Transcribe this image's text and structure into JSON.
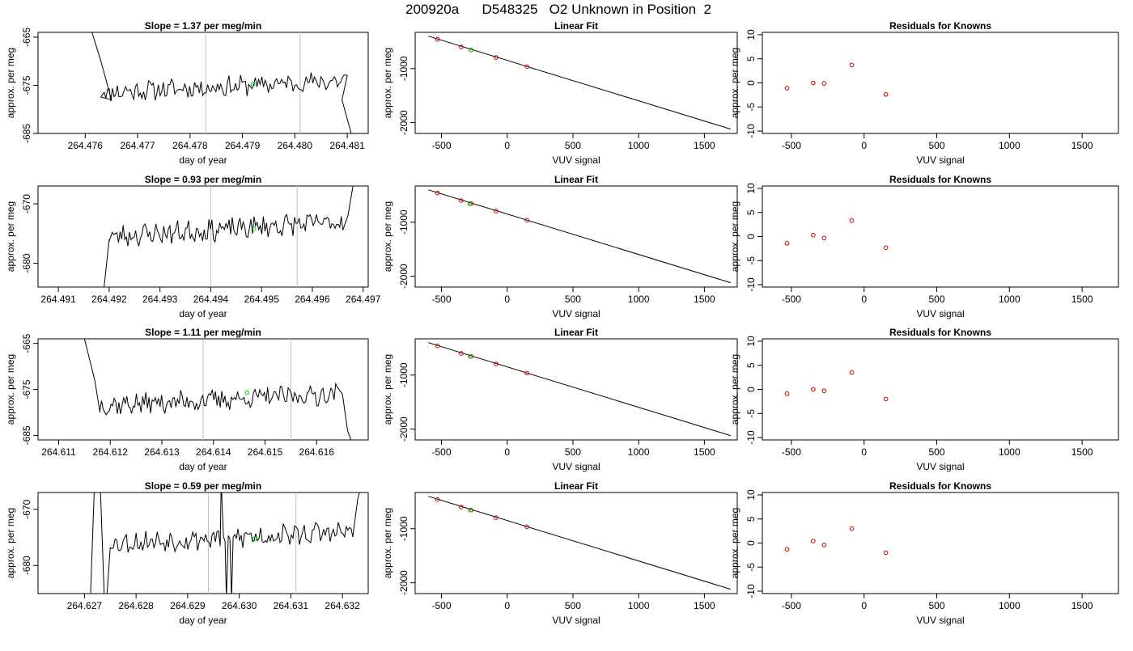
{
  "figure_title": "200920a      D548325   O2 Unknown in Position  2",
  "colors": {
    "trace": "#000000",
    "vline": "#bebebe",
    "known_point": "#cc0000",
    "unknown_point": "#00cc00",
    "fit_line": "#000000"
  },
  "chart_data": [
    {
      "type": "line",
      "row": 0,
      "col": 0,
      "title": "Slope =  1.37  per meg/min",
      "xlabel": "day of year",
      "ylabel": "approx. per meg",
      "xlim": [
        264.4751,
        264.4814
      ],
      "ylim": [
        -685,
        -664
      ],
      "xticks": [
        264.476,
        264.477,
        264.478,
        264.479,
        264.48,
        264.481
      ],
      "xtick_labels": [
        "264.476",
        "264.477",
        "264.478",
        "264.479",
        "264.480",
        "264.481"
      ],
      "yticks": [
        -685,
        -675,
        -665
      ],
      "ytick_labels": [
        "-685",
        "-675",
        "-665"
      ],
      "vlines": [
        264.4783,
        264.4801
      ],
      "trace": {
        "x_start": 264.4763,
        "x_end": 264.481,
        "base": -676.5,
        "trend": 2.5,
        "noise": 1.8,
        "seed": 11,
        "lead": [
          [
            264.4761,
            -663
          ],
          [
            264.4763,
            -670
          ],
          [
            264.4765,
            -678
          ]
        ],
        "tail": [
          [
            264.4809,
            -678
          ],
          [
            264.481,
            -682
          ],
          [
            264.4811,
            -686
          ]
        ]
      },
      "unknown_point": {
        "x": 264.4792,
        "y": -674.8
      }
    },
    {
      "type": "scatter",
      "row": 0,
      "col": 1,
      "title": "Linear Fit",
      "xlabel": "VUV signal",
      "ylabel": "approx. per meg",
      "xlim": [
        -700,
        1750
      ],
      "ylim": [
        -2200,
        -330
      ],
      "xticks": [
        -500,
        0,
        500,
        1000,
        1500
      ],
      "xtick_labels": [
        "-500",
        "0",
        "500",
        "1000",
        "1500"
      ],
      "yticks": [
        -2000,
        -1000
      ],
      "ytick_labels": [
        "-2000",
        "-1000"
      ],
      "fit_line": [
        [
          -600,
          -400
        ],
        [
          1700,
          -2120
        ]
      ],
      "known_points": [
        {
          "x": -530,
          "y": -460
        },
        {
          "x": -350,
          "y": -600
        },
        {
          "x": -275,
          "y": -655
        },
        {
          "x": -85,
          "y": -795
        },
        {
          "x": 150,
          "y": -965
        }
      ],
      "unknown_point": {
        "x": -275,
        "y": -655
      }
    },
    {
      "type": "scatter",
      "row": 0,
      "col": 2,
      "title": "Residuals for Knowns",
      "xlabel": "VUV signal",
      "ylabel": "approx. per meg",
      "xlim": [
        -700,
        1750
      ],
      "ylim": [
        -10.5,
        10.5
      ],
      "xticks": [
        -500,
        0,
        500,
        1000,
        1500
      ],
      "xtick_labels": [
        "-500",
        "0",
        "500",
        "1000",
        "1500"
      ],
      "yticks": [
        -10,
        -5,
        0,
        5,
        10
      ],
      "ytick_labels": [
        "-10",
        "-5",
        "0",
        "5",
        "10"
      ],
      "known_points": [
        {
          "x": -530,
          "y": -1.1
        },
        {
          "x": -350,
          "y": 0.0
        },
        {
          "x": -275,
          "y": -0.1
        },
        {
          "x": -85,
          "y": 3.7
        },
        {
          "x": 150,
          "y": -2.4
        }
      ]
    },
    {
      "type": "line",
      "row": 1,
      "col": 0,
      "title": "Slope =  0.93  per meg/min",
      "xlabel": "day of year",
      "ylabel": "approx. per meg",
      "xlim": [
        264.4906,
        264.4971
      ],
      "ylim": [
        -684,
        -667
      ],
      "xticks": [
        264.491,
        264.492,
        264.493,
        264.494,
        264.495,
        264.496,
        264.497
      ],
      "xtick_labels": [
        "264.491",
        "264.492",
        "264.493",
        "264.494",
        "264.495",
        "264.496",
        "264.497"
      ],
      "yticks": [
        -680,
        -670
      ],
      "ytick_labels": [
        "-680",
        "-670"
      ],
      "vlines": [
        264.494,
        264.4957
      ],
      "trace": {
        "x_start": 264.492,
        "x_end": 264.4966,
        "base": -675.5,
        "trend": 2.5,
        "noise": 1.6,
        "seed": 23,
        "lead": [
          [
            264.4919,
            -684
          ],
          [
            264.492,
            -676
          ]
        ],
        "tail": [
          [
            264.4967,
            -672
          ],
          [
            264.4968,
            -667
          ],
          [
            264.4969,
            -665
          ]
        ]
      },
      "unknown_point": {
        "x": 264.49485,
        "y": -674.2
      }
    },
    {
      "type": "scatter",
      "row": 1,
      "col": 1,
      "title": "Linear Fit",
      "xlabel": "VUV signal",
      "ylabel": "approx. per meg",
      "xlim": [
        -700,
        1750
      ],
      "ylim": [
        -2200,
        -330
      ],
      "xticks": [
        -500,
        0,
        500,
        1000,
        1500
      ],
      "xtick_labels": [
        "-500",
        "0",
        "500",
        "1000",
        "1500"
      ],
      "yticks": [
        -2000,
        -1000
      ],
      "ytick_labels": [
        "-2000",
        "-1000"
      ],
      "fit_line": [
        [
          -600,
          -400
        ],
        [
          1700,
          -2120
        ]
      ],
      "known_points": [
        {
          "x": -530,
          "y": -460
        },
        {
          "x": -350,
          "y": -600
        },
        {
          "x": -275,
          "y": -655
        },
        {
          "x": -85,
          "y": -795
        },
        {
          "x": 150,
          "y": -965
        }
      ],
      "unknown_point": {
        "x": -285,
        "y": -655
      }
    },
    {
      "type": "scatter",
      "row": 1,
      "col": 2,
      "title": "Residuals for Knowns",
      "xlabel": "VUV signal",
      "ylabel": "approx. per meg",
      "xlim": [
        -700,
        1750
      ],
      "ylim": [
        -10.5,
        10.5
      ],
      "xticks": [
        -500,
        0,
        500,
        1000,
        1500
      ],
      "xtick_labels": [
        "-500",
        "0",
        "500",
        "1000",
        "1500"
      ],
      "yticks": [
        -10,
        -5,
        0,
        5,
        10
      ],
      "ytick_labels": [
        "-10",
        "-5",
        "0",
        "5",
        "10"
      ],
      "known_points": [
        {
          "x": -530,
          "y": -1.4
        },
        {
          "x": -350,
          "y": 0.3
        },
        {
          "x": -275,
          "y": -0.3
        },
        {
          "x": -85,
          "y": 3.3
        },
        {
          "x": 150,
          "y": -2.3
        }
      ]
    },
    {
      "type": "line",
      "row": 2,
      "col": 0,
      "title": "Slope =  1.11  per meg/min",
      "xlabel": "day of year",
      "ylabel": "approx. per meg",
      "xlim": [
        264.6106,
        264.617
      ],
      "ylim": [
        -686,
        -664
      ],
      "xticks": [
        264.611,
        264.612,
        264.613,
        264.614,
        264.615,
        264.616
      ],
      "xtick_labels": [
        "264.611",
        "264.612",
        "264.613",
        "264.614",
        "264.615",
        "264.616"
      ],
      "yticks": [
        -685,
        -675,
        -665
      ],
      "ytick_labels": [
        "-685",
        "-675",
        "-665"
      ],
      "vlines": [
        264.6138,
        264.6155
      ],
      "trace": {
        "x_start": 264.6118,
        "x_end": 264.6164,
        "base": -678.5,
        "trend": 2.5,
        "noise": 2.0,
        "seed": 37,
        "lead": [
          [
            264.6115,
            -664
          ],
          [
            264.6117,
            -673
          ],
          [
            264.6118,
            -680
          ]
        ],
        "tail": [
          [
            264.6165,
            -676
          ],
          [
            264.6166,
            -684
          ],
          [
            264.6167,
            -687
          ]
        ]
      },
      "unknown_point": {
        "x": 264.61465,
        "y": -675.7
      }
    },
    {
      "type": "scatter",
      "row": 2,
      "col": 1,
      "title": "Linear Fit",
      "xlabel": "VUV signal",
      "ylabel": "approx. per meg",
      "xlim": [
        -700,
        1750
      ],
      "ylim": [
        -2200,
        -330
      ],
      "xticks": [
        -500,
        0,
        500,
        1000,
        1500
      ],
      "xtick_labels": [
        "-500",
        "0",
        "500",
        "1000",
        "1500"
      ],
      "yticks": [
        -2000,
        -1000
      ],
      "ytick_labels": [
        "-2000",
        "-1000"
      ],
      "fit_line": [
        [
          -600,
          -400
        ],
        [
          1700,
          -2120
        ]
      ],
      "known_points": [
        {
          "x": -530,
          "y": -460
        },
        {
          "x": -350,
          "y": -600
        },
        {
          "x": -275,
          "y": -655
        },
        {
          "x": -85,
          "y": -795
        },
        {
          "x": 150,
          "y": -965
        }
      ],
      "unknown_point": {
        "x": -280,
        "y": -655
      }
    },
    {
      "type": "scatter",
      "row": 2,
      "col": 2,
      "title": "Residuals for Knowns",
      "xlabel": "VUV signal",
      "ylabel": "approx. per meg",
      "xlim": [
        -700,
        1750
      ],
      "ylim": [
        -10.5,
        10.5
      ],
      "xticks": [
        -500,
        0,
        500,
        1000,
        1500
      ],
      "xtick_labels": [
        "-500",
        "0",
        "500",
        "1000",
        "1500"
      ],
      "yticks": [
        -10,
        -5,
        0,
        5,
        10
      ],
      "ytick_labels": [
        "-10",
        "-5",
        "0",
        "5",
        "10"
      ],
      "known_points": [
        {
          "x": -530,
          "y": -0.9
        },
        {
          "x": -350,
          "y": 0.0
        },
        {
          "x": -275,
          "y": -0.3
        },
        {
          "x": -85,
          "y": 3.5
        },
        {
          "x": 150,
          "y": -2.0
        }
      ]
    },
    {
      "type": "line",
      "row": 3,
      "col": 0,
      "title": "Slope =  0.59  per meg/min",
      "xlabel": "day of year",
      "ylabel": "approx. per meg",
      "xlim": [
        264.6261,
        264.6325
      ],
      "ylim": [
        -685,
        -667
      ],
      "xticks": [
        264.627,
        264.628,
        264.629,
        264.63,
        264.631,
        264.632
      ],
      "xtick_labels": [
        "264.627",
        "264.628",
        "264.629",
        "264.630",
        "264.631",
        "264.632"
      ],
      "yticks": [
        -680,
        -670
      ],
      "ytick_labels": [
        "-680",
        "-670"
      ],
      "vlines": [
        264.6294,
        264.6311
      ],
      "trace": {
        "x_start": 264.6275,
        "x_end": 264.6322,
        "base": -676.0,
        "trend": 2.0,
        "noise": 1.7,
        "seed": 53,
        "lead": [
          [
            264.6271,
            -690
          ],
          [
            264.6272,
            -664
          ],
          [
            264.6273,
            -664
          ],
          [
            264.6274,
            -690
          ]
        ],
        "tail": [
          [
            264.6323,
            -668
          ],
          [
            264.6324,
            -665
          ]
        ],
        "spikes": [
          [
            264.62965,
            -665
          ],
          [
            264.62975,
            -686
          ],
          [
            264.62985,
            -686
          ]
        ]
      },
      "unknown_point": {
        "x": 264.6303,
        "y": -675.2
      }
    },
    {
      "type": "scatter",
      "row": 3,
      "col": 1,
      "title": "Linear Fit",
      "xlabel": "VUV signal",
      "ylabel": "approx. per meg",
      "xlim": [
        -700,
        1750
      ],
      "ylim": [
        -2200,
        -330
      ],
      "xticks": [
        -500,
        0,
        500,
        1000,
        1500
      ],
      "xtick_labels": [
        "-500",
        "0",
        "500",
        "1000",
        "1500"
      ],
      "yticks": [
        -2000,
        -1000
      ],
      "ytick_labels": [
        "-2000",
        "-1000"
      ],
      "fit_line": [
        [
          -600,
          -400
        ],
        [
          1700,
          -2120
        ]
      ],
      "known_points": [
        {
          "x": -530,
          "y": -460
        },
        {
          "x": -350,
          "y": -600
        },
        {
          "x": -275,
          "y": -655
        },
        {
          "x": -85,
          "y": -795
        },
        {
          "x": 150,
          "y": -965
        }
      ],
      "unknown_point": {
        "x": -280,
        "y": -655
      }
    },
    {
      "type": "scatter",
      "row": 3,
      "col": 2,
      "title": "Residuals for Knowns",
      "xlabel": "VUV signal",
      "ylabel": "approx. per meg",
      "xlim": [
        -700,
        1750
      ],
      "ylim": [
        -10.5,
        10.5
      ],
      "xticks": [
        -500,
        0,
        500,
        1000,
        1500
      ],
      "xtick_labels": [
        "-500",
        "0",
        "500",
        "1000",
        "1500"
      ],
      "yticks": [
        -10,
        -5,
        0,
        5,
        10
      ],
      "ytick_labels": [
        "-10",
        "-5",
        "0",
        "5",
        "10"
      ],
      "known_points": [
        {
          "x": -530,
          "y": -1.3
        },
        {
          "x": -350,
          "y": 0.4
        },
        {
          "x": -275,
          "y": -0.4
        },
        {
          "x": -85,
          "y": 3.0
        },
        {
          "x": 150,
          "y": -2.0
        }
      ]
    }
  ]
}
